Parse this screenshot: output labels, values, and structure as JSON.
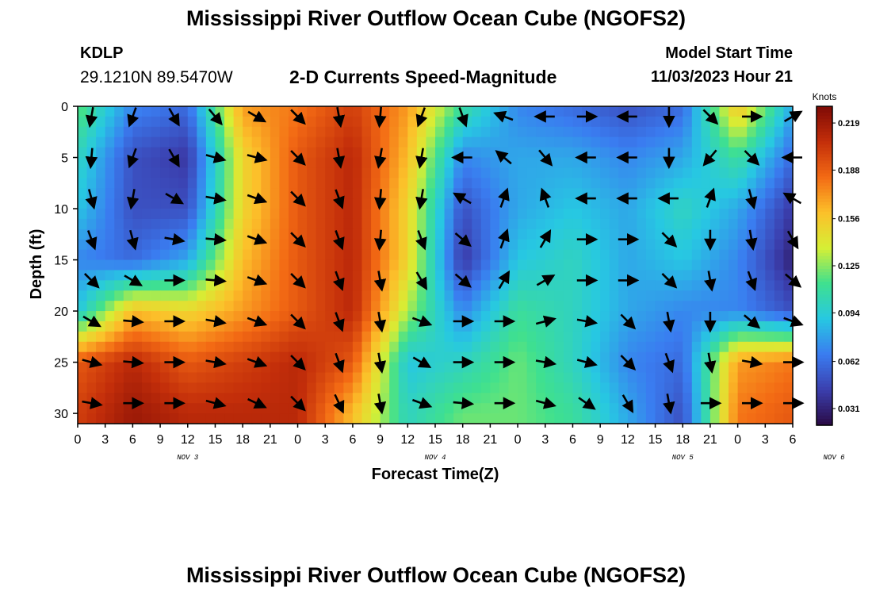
{
  "page": {
    "title": "Mississippi River Outflow Ocean Cube (NGOFS2)",
    "title_repeat": "Mississippi River Outflow Ocean Cube (NGOFS2)",
    "station_id": "KDLP",
    "station_coords": "29.1210N  89.5470W",
    "subtitle": "2-D Currents Speed-Magnitude",
    "model_start_label": "Model Start Time",
    "model_start_value": "11/03/2023 Hour 21"
  },
  "chart_data": {
    "type": "heatmap",
    "title": "2-D Currents Speed-Magnitude",
    "xlabel": "Forecast Time(Z)",
    "ylabel": "Depth (ft)",
    "x_tick_labels": [
      "0",
      "3",
      "6",
      "9",
      "12",
      "15",
      "18",
      "21",
      "0",
      "3",
      "6",
      "9",
      "12",
      "15",
      "18",
      "21",
      "0",
      "3",
      "6",
      "9",
      "12",
      "15",
      "18",
      "21",
      "0",
      "3",
      "6"
    ],
    "x_date_labels": [
      {
        "label": "NOV 3",
        "at_tick": 4
      },
      {
        "label": "NOV 4",
        "at_tick": 13
      },
      {
        "label": "NOV 5",
        "at_tick": 22
      },
      {
        "label": "NOV 6",
        "at_tick": 27.5
      }
    ],
    "x_range_hours": [
      0,
      78
    ],
    "ylim": [
      0,
      31
    ],
    "y_ticks": [
      0,
      5,
      10,
      15,
      20,
      25,
      30
    ],
    "colorbar": {
      "unit": "Knots",
      "ticks": [
        "0.219",
        "0.188",
        "0.156",
        "0.125",
        "0.094",
        "0.062",
        "0.031"
      ],
      "range": [
        0.02,
        0.23
      ],
      "colors": [
        "#2a0a45",
        "#3b3fae",
        "#3a7cf0",
        "#27c8e2",
        "#3fe08f",
        "#d6ef35",
        "#fcc02a",
        "#f36a14",
        "#c32e0a",
        "#7e0a05"
      ]
    },
    "speed_grid": {
      "x_hours": [
        0,
        6,
        12,
        18,
        24,
        30,
        36,
        42,
        48,
        54,
        60,
        66,
        72,
        78
      ],
      "depths_ft": [
        0,
        5,
        10,
        15,
        20,
        25,
        30
      ],
      "values": [
        [
          0.12,
          0.07,
          0.06,
          0.17,
          0.18,
          0.2,
          0.17,
          0.11,
          0.07,
          0.06,
          0.05,
          0.06,
          0.16,
          0.08
        ],
        [
          0.1,
          0.05,
          0.04,
          0.15,
          0.19,
          0.21,
          0.16,
          0.07,
          0.08,
          0.08,
          0.07,
          0.08,
          0.11,
          0.06
        ],
        [
          0.09,
          0.05,
          0.05,
          0.15,
          0.19,
          0.21,
          0.15,
          0.05,
          0.08,
          0.09,
          0.08,
          0.1,
          0.08,
          0.04
        ],
        [
          0.07,
          0.06,
          0.08,
          0.16,
          0.19,
          0.21,
          0.15,
          0.04,
          0.09,
          0.1,
          0.08,
          0.09,
          0.07,
          0.03
        ],
        [
          0.09,
          0.16,
          0.15,
          0.17,
          0.19,
          0.21,
          0.13,
          0.07,
          0.11,
          0.1,
          0.08,
          0.07,
          0.07,
          0.05
        ],
        [
          0.19,
          0.21,
          0.19,
          0.2,
          0.21,
          0.19,
          0.09,
          0.1,
          0.12,
          0.1,
          0.07,
          0.06,
          0.17,
          0.18
        ],
        [
          0.2,
          0.22,
          0.21,
          0.21,
          0.21,
          0.16,
          0.1,
          0.12,
          0.12,
          0.11,
          0.08,
          0.05,
          0.18,
          0.19
        ]
      ]
    },
    "vectors_note": "direction angles in degrees, 0 = east, positive = clockwise (downward on screen), sampled at ~4.5 h x 4 ft",
    "vectors": {
      "x_hours": [
        0,
        4.5,
        9,
        13.5,
        18,
        22.5,
        27,
        31.5,
        36,
        40.5,
        45,
        49.5,
        54,
        58.5,
        63,
        67.5,
        72,
        76.5
      ],
      "depths_ft": [
        1,
        5,
        9,
        13,
        17,
        21,
        25,
        29
      ],
      "angles": [
        [
          100,
          110,
          60,
          50,
          30,
          45,
          80,
          95,
          110,
          70,
          200,
          180,
          0,
          180,
          90,
          45,
          0,
          -30
        ],
        [
          95,
          110,
          60,
          15,
          15,
          45,
          80,
          100,
          100,
          180,
          220,
          50,
          180,
          180,
          90,
          130,
          45,
          180
        ],
        [
          75,
          100,
          30,
          10,
          20,
          45,
          70,
          95,
          100,
          210,
          290,
          250,
          180,
          180,
          180,
          290,
          75,
          210
        ],
        [
          70,
          75,
          10,
          5,
          20,
          45,
          70,
          95,
          70,
          40,
          290,
          300,
          0,
          0,
          45,
          90,
          80,
          60
        ],
        [
          45,
          30,
          0,
          5,
          20,
          45,
          70,
          80,
          60,
          40,
          300,
          330,
          0,
          0,
          45,
          80,
          70,
          40
        ],
        [
          30,
          5,
          0,
          10,
          20,
          45,
          70,
          80,
          20,
          0,
          0,
          -15,
          10,
          45,
          80,
          90,
          40,
          20
        ],
        [
          15,
          5,
          0,
          10,
          20,
          45,
          70,
          80,
          30,
          0,
          0,
          10,
          15,
          45,
          70,
          80,
          10,
          0
        ],
        [
          10,
          0,
          0,
          15,
          25,
          45,
          65,
          80,
          20,
          5,
          0,
          15,
          35,
          60,
          80,
          0,
          0,
          0
        ]
      ]
    }
  }
}
